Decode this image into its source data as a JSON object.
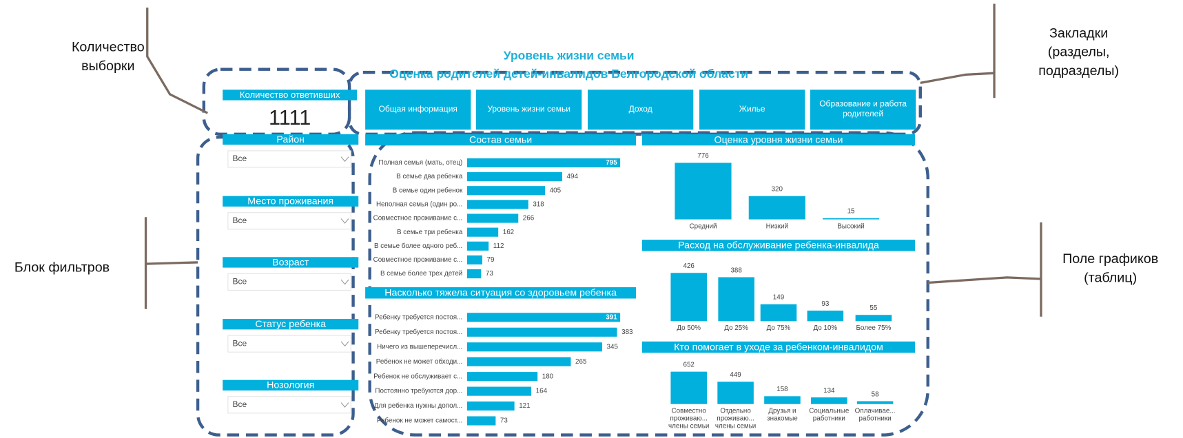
{
  "annotations": [
    {
      "lines": [
        "Количество",
        "выборки"
      ]
    },
    {
      "lines": [
        "Закладки",
        "(разделы,",
        "подразделы)"
      ]
    },
    {
      "lines": [
        "Блок фильтров"
      ]
    },
    {
      "lines": [
        "Поле графиков",
        "(таблиц)"
      ]
    }
  ],
  "header": {
    "title": "Уровень жизни семьи",
    "subtitle": "Оценка родителей детей-инвалидов Белгородской области"
  },
  "card": {
    "label": "Количество ответивших",
    "value": 1111
  },
  "tabs": [
    "Общая информация",
    "Уровень жизни семьи",
    "Доход",
    "Жилье",
    [
      "Образование и работа",
      "родителей"
    ]
  ],
  "filters": [
    {
      "label": "Район",
      "value": "Все"
    },
    {
      "label": "Место проживания",
      "value": "Все"
    },
    {
      "label": "Возраст",
      "value": "Все"
    },
    {
      "label": "Статус ребенка",
      "value": "Все"
    },
    {
      "label": "Нозология",
      "value": "Все"
    }
  ],
  "chart_data": [
    {
      "type": "hbar",
      "title": "Состав семьи",
      "color": "#01b0dd",
      "categories": [
        "Полная семья (мать, отец)",
        "В семье два ребенка",
        "В семье один ребенок",
        "Неполная семья (один ро...",
        "Совместное проживание с...",
        "В семье три ребенка",
        "В семье более одного реб...",
        "Совместное проживание с...",
        "В семье более трех детей"
      ],
      "values": [
        795,
        494,
        405,
        318,
        266,
        162,
        112,
        79,
        73
      ]
    },
    {
      "type": "hbar",
      "title": "Насколько тяжела ситуация со здоровьем ребенка",
      "color": "#01b0dd",
      "categories": [
        "Ребенку требуется постоя...",
        "Ребенку требуется постоя...",
        "Ничего из вышеперечисл...",
        "Ребенок не может обходи...",
        "Ребенок не обслуживает с...",
        "Постоянно требуются дор...",
        "Для ребенка нужны допол...",
        "Ребенок не может самост..."
      ],
      "values": [
        391,
        383,
        345,
        265,
        180,
        164,
        121,
        73
      ]
    },
    {
      "type": "bar",
      "title": "Оценка уровня жизни семьи",
      "color": "#01b0dd",
      "categories": [
        [
          "Средний"
        ],
        [
          "Низкий"
        ],
        [
          "Высокий"
        ]
      ],
      "values": [
        776,
        320,
        15
      ]
    },
    {
      "type": "bar",
      "title": "Расход на обслуживание ребенка-инвалида",
      "color": "#01b0dd",
      "categories": [
        [
          "До 50%"
        ],
        [
          "До 25%"
        ],
        [
          "До 75%"
        ],
        [
          "До 10%"
        ],
        [
          "Более 75%"
        ]
      ],
      "values": [
        426,
        388,
        149,
        93,
        55
      ]
    },
    {
      "type": "bar",
      "title": "Кто помогает в уходе за ребенком-инвалидом",
      "color": "#01b0dd",
      "categories": [
        [
          "Совместно",
          "проживаю...",
          "члены семьи"
        ],
        [
          "Отдельно",
          "проживаю...",
          "члены семьи"
        ],
        [
          "Друзья и",
          "знакомые"
        ],
        [
          "Социальные",
          "работники"
        ],
        [
          "Оплачивае...",
          "работники"
        ]
      ],
      "values": [
        652,
        449,
        158,
        134,
        58
      ]
    }
  ]
}
